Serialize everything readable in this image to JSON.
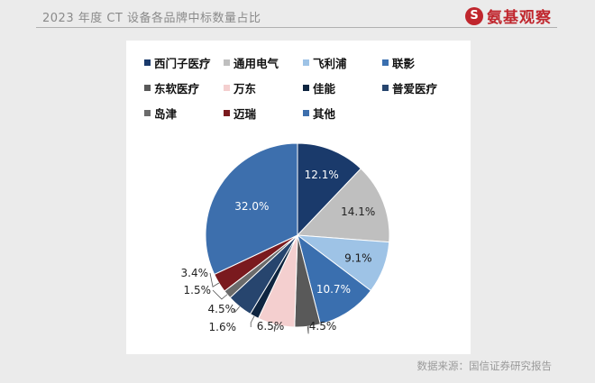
{
  "header": {
    "title": "2023 年度 CT 设备各品牌中标数量占比",
    "logo_mark": "S",
    "logo_text": "氨基观察"
  },
  "source": "数据来源：国信证券研究报告",
  "chart_data": {
    "type": "pie",
    "title": "",
    "legend_position": "top",
    "slices": [
      {
        "label": "西门子医疗",
        "value": 12.1,
        "display": "12.1%",
        "color": "#1a3a6b"
      },
      {
        "label": "通用电气",
        "value": 14.1,
        "display": "14.1%",
        "color": "#bfbfbf"
      },
      {
        "label": "飞利浦",
        "value": 9.1,
        "display": "9.1%",
        "color": "#9ec3e6"
      },
      {
        "label": "联影",
        "value": 10.7,
        "display": "10.7%",
        "color": "#3a6faf"
      },
      {
        "label": "东软医疗",
        "value": 4.5,
        "display": "4.5%",
        "color": "#595959"
      },
      {
        "label": "万东",
        "value": 6.5,
        "display": "6.5%",
        "color": "#f4cfcf"
      },
      {
        "label": "佳能",
        "value": 1.6,
        "display": "1.6%",
        "color": "#0f2540"
      },
      {
        "label": "普爱医疗",
        "value": 4.5,
        "display": "4.5%",
        "color": "#27456e"
      },
      {
        "label": "岛津",
        "value": 1.5,
        "display": "1.5%",
        "color": "#6b6b6b"
      },
      {
        "label": "迈瑞",
        "value": 3.4,
        "display": "3.4%",
        "color": "#7a1a1e"
      },
      {
        "label": "其他",
        "value": 32.0,
        "display": "32.0%",
        "color": "#3d6fad"
      }
    ]
  }
}
